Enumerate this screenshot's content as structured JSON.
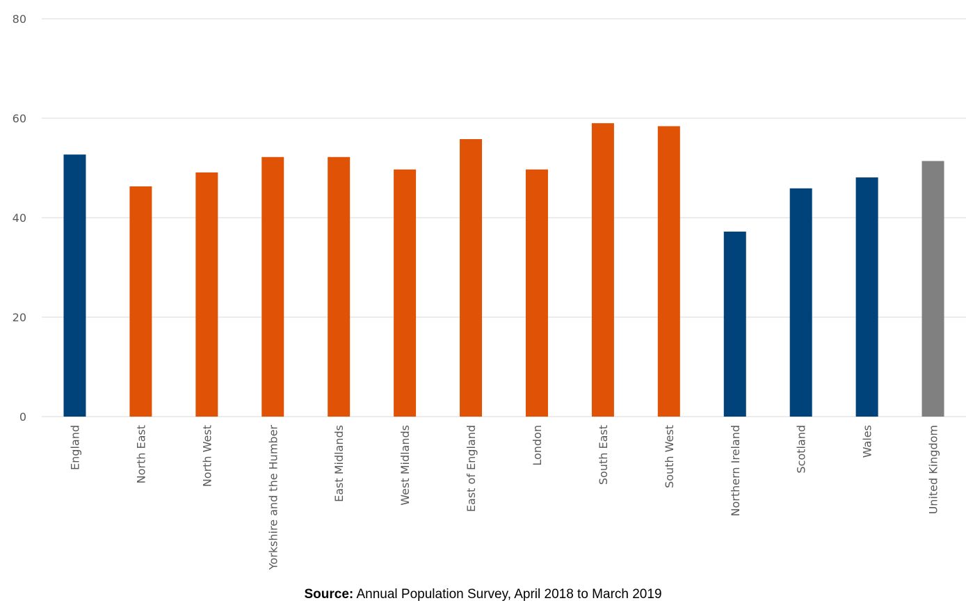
{
  "chart_data": {
    "type": "bar",
    "title": "",
    "xlabel": "",
    "ylabel": "",
    "ylim": [
      0,
      80
    ],
    "yticks": [
      0,
      20,
      40,
      60,
      80
    ],
    "grid": true,
    "categories": [
      "England",
      "North East",
      "North West",
      "Yorkshire and the Humber",
      "East Midlands",
      "West Midlands",
      "East of England",
      "London",
      "South East",
      "South West",
      "Northern Ireland",
      "Scotland",
      "Wales",
      "United Kingdom"
    ],
    "values": [
      52.7,
      46.3,
      49.1,
      52.2,
      52.2,
      49.7,
      55.8,
      49.7,
      59.0,
      58.4,
      37.2,
      45.9,
      48.1,
      51.4
    ],
    "bar_colors": [
      "#00427A",
      "#E05206",
      "#E05206",
      "#E05206",
      "#E05206",
      "#E05206",
      "#E05206",
      "#E05206",
      "#E05206",
      "#E05206",
      "#00427A",
      "#00427A",
      "#00427A",
      "#808080"
    ]
  },
  "colors": {
    "nation": "#00427A",
    "english_region": "#E05206",
    "united_kingdom": "#808080",
    "gridline": "#D9D9D9",
    "axis_text": "#595959"
  },
  "source": {
    "label": "Source:",
    "text": " Annual Population Survey, April 2018 to March 2019"
  }
}
